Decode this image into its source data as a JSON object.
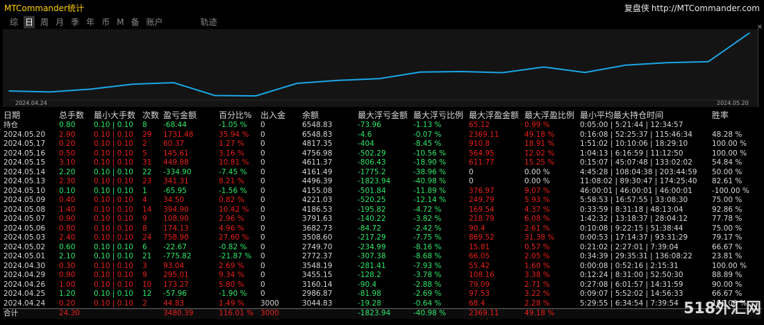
{
  "window": {
    "title": "MTCommander统计",
    "brand_name": "复盘侠",
    "brand_url": "http://MTCommander.com",
    "close": "✕"
  },
  "tabs": [
    "综",
    "日",
    "周",
    "月",
    "季",
    "年",
    "币",
    "M",
    "备",
    "账户",
    "轨迹"
  ],
  "active_tab": "日",
  "chart_data": {
    "type": "line",
    "x": [
      "2024.04.24",
      "2024.04.25",
      "2024.04.26",
      "2024.04.29",
      "2024.04.30",
      "2024.05.01",
      "2024.05.02",
      "2024.05.03",
      "2024.05.06",
      "2024.05.07",
      "2024.05.08",
      "2024.05.09",
      "2024.05.10",
      "2024.05.13",
      "2024.05.14",
      "2024.05.15",
      "2024.05.16",
      "2024.05.17",
      "2024.05.20"
    ],
    "series": [
      {
        "values": [
          3044.83,
          2986.87,
          3160.14,
          3455.15,
          3548.19,
          2772.37,
          2749.7,
          3508.6,
          3682.73,
          3791.63,
          4186.53,
          4221.03,
          4155.08,
          4496.39,
          4161.49,
          4611.37,
          4756.98,
          4817.35,
          6548.83
        ]
      }
    ],
    "xlabel_start": "2024.04.24",
    "xlabel_end": "2024.05.20",
    "ylim": [
      2500,
      6700
    ],
    "grid": false,
    "line_color": "#1aa7e8"
  },
  "table": {
    "headers": [
      "日期",
      "总手数",
      "最小大手数",
      "次数",
      "盈亏金额",
      "百分比%",
      "出入金",
      "余额",
      "最大浮亏金额",
      "最大浮亏比例",
      "最大浮盈金额",
      "最大浮盈比例",
      "最小平均最大持仓时间",
      "胜率"
    ],
    "holding": {
      "label": "持仓",
      "cells": [
        "0.80",
        "0.10 | 0.10",
        "8",
        "-68.44",
        "-1.05 %",
        "0",
        "6548.83",
        "-73.96",
        "-1.13 %",
        "65.12",
        "0.99 %",
        "0:05:00 | 5:21:44 | 12:34:57",
        ""
      ]
    },
    "rows": [
      {
        "date": "2024.05.20",
        "lots": "2.90",
        "minmax": "0.10 | 0.10",
        "count": "29",
        "pl": "1731.48",
        "pct": "35.94 %",
        "flow": "0",
        "balance": "6548.83",
        "mfl": "-4.6",
        "mflp": "-0.07 %",
        "mfp": "2369.11",
        "mfpp": "49.18 %",
        "time": "0:16:08 | 52:25:37 | 115:46:34",
        "win": "48.28 %",
        "sign": "r"
      },
      {
        "date": "2024.05.17",
        "lots": "0.20",
        "minmax": "0.10 | 0.10",
        "count": "2",
        "pl": "60.37",
        "pct": "1.27 %",
        "flow": "0",
        "balance": "4817.35",
        "mfl": "-404",
        "mflp": "-8.45 %",
        "mfp": "910.8",
        "mfpp": "18.91 %",
        "time": "1:51:02 | 10:10:06 | 18:29:10",
        "win": "100.00 %",
        "sign": "r"
      },
      {
        "date": "2024.05.16",
        "lots": "0.50",
        "minmax": "0.10 | 0.10",
        "count": "5",
        "pl": "145.61",
        "pct": "3.16 %",
        "flow": "0",
        "balance": "4756.98",
        "mfl": "-502.29",
        "mflp": "-10.56 %",
        "mfp": "564.95",
        "mfpp": "12.02 %",
        "time": "1:04:13 | 6:16:59 | 11:12:50",
        "win": "100.00 %",
        "sign": "r"
      },
      {
        "date": "2024.05.15",
        "lots": "3.10",
        "minmax": "0.10 | 0.10",
        "count": "31",
        "pl": "449.88",
        "pct": "10.81 %",
        "flow": "0",
        "balance": "4611.37",
        "mfl": "-806.43",
        "mflp": "-18.90 %",
        "mfp": "611.77",
        "mfpp": "15.25 %",
        "time": "0:15:07 | 45:07:48 | 133:02:02",
        "win": "54.84 %",
        "sign": "r"
      },
      {
        "date": "2024.05.14",
        "lots": "2.20",
        "minmax": "0.10 | 0.10",
        "count": "22",
        "pl": "-334.90",
        "pct": "-7.45 %",
        "flow": "0",
        "balance": "4161.49",
        "mfl": "-1775.2",
        "mflp": "-38.96 %",
        "mfp": "0",
        "mfpp": "0.00 %",
        "time": "4:45:28 | 108:04:38 | 203:44:59",
        "win": "50.00 %",
        "sign": "g"
      },
      {
        "date": "2024.05.13",
        "lots": "2.30",
        "minmax": "0.10 | 0.10",
        "count": "23",
        "pl": "341.31",
        "pct": "8.21 %",
        "flow": "0",
        "balance": "4496.39",
        "mfl": "-1823.94",
        "mflp": "-40.98 %",
        "mfp": "0",
        "mfpp": "0.00 %",
        "time": "11:08:02 | 89:30:47 | 174:25:40",
        "win": "82.61 %",
        "sign": "r"
      },
      {
        "date": "2024.05.10",
        "lots": "0.10",
        "minmax": "0.10 | 0.10",
        "count": "1",
        "pl": "-65.95",
        "pct": "-1.56 %",
        "flow": "0",
        "balance": "4155.08",
        "mfl": "-501.84",
        "mflp": "-11.89 %",
        "mfp": "376.97",
        "mfpp": "9.07 %",
        "time": "46:00:01 | 46:00:01 | 46:00:01",
        "win": "-100.00 %",
        "sign": "g"
      },
      {
        "date": "2024.05.09",
        "lots": "0.40",
        "minmax": "0.10 | 0.10",
        "count": "4",
        "pl": "34.50",
        "pct": "0.82 %",
        "flow": "0",
        "balance": "4221.03",
        "mfl": "-520.25",
        "mflp": "-12.14 %",
        "mfp": "249.79",
        "mfpp": "5.93 %",
        "time": "5:58:53 | 16:57:55 | 33:08:30",
        "win": "75.00 %",
        "sign": "r"
      },
      {
        "date": "2024.05.08",
        "lots": "1.40",
        "minmax": "0.10 | 0.10",
        "count": "14",
        "pl": "394.90",
        "pct": "10.42 %",
        "flow": "0",
        "balance": "4186.53",
        "mfl": "-195.82",
        "mflp": "-4.72 %",
        "mfp": "169.54",
        "mfpp": "4.37 %",
        "time": "0:33:59 | 8:31:18 | 48:13:04",
        "win": "92.86 %",
        "sign": "r"
      },
      {
        "date": "2024.05.07",
        "lots": "0.90",
        "minmax": "0.10 | 0.10",
        "count": "9",
        "pl": "108.90",
        "pct": "2.96 %",
        "flow": "0",
        "balance": "3791.63",
        "mfl": "-140.22",
        "mflp": "-3.82 %",
        "mfp": "218.79",
        "mfpp": "6.08 %",
        "time": "1:42:32 | 13:18:37 | 28:04:12",
        "win": "77.78 %",
        "sign": "r"
      },
      {
        "date": "2024.05.06",
        "lots": "0.80",
        "minmax": "0.10 | 0.10",
        "count": "8",
        "pl": "174.13",
        "pct": "4.96 %",
        "flow": "0",
        "balance": "3682.73",
        "mfl": "-84.72",
        "mflp": "-2.42 %",
        "mfp": "90.4",
        "mfpp": "2.61 %",
        "time": "0:10:08 | 9:22:15 | 51:38:44",
        "win": "75.00 %",
        "sign": "r"
      },
      {
        "date": "2024.05.03",
        "lots": "2.40",
        "minmax": "0.10 | 0.10",
        "count": "24",
        "pl": "758.90",
        "pct": "27.60 %",
        "flow": "0",
        "balance": "3508.60",
        "mfl": "-217.29",
        "mflp": "-7.75 %",
        "mfp": "869.52",
        "mfpp": "31.38 %",
        "time": "0:00:53 | 17:14:37 | 93:31:29",
        "win": "79.17 %",
        "sign": "r"
      },
      {
        "date": "2024.05.02",
        "lots": "0.60",
        "minmax": "0.10 | 0.10",
        "count": "6",
        "pl": "-22.67",
        "pct": "-0.82 %",
        "flow": "0",
        "balance": "2749.70",
        "mfl": "-234.99",
        "mflp": "-8.16 %",
        "mfp": "15.81",
        "mfpp": "0.57 %",
        "time": "0:21:02 | 2:27:01 | 7:39:04",
        "win": "66.67 %",
        "sign": "g"
      },
      {
        "date": "2024.05.01",
        "lots": "2.10",
        "minmax": "0.10 | 0.10",
        "count": "21",
        "pl": "-775.82",
        "pct": "-21.87 %",
        "flow": "0",
        "balance": "2772.37",
        "mfl": "-307.38",
        "mflp": "-8.68 %",
        "mfp": "66.05",
        "mfpp": "2.05 %",
        "time": "0:34:39 | 29:35:31 | 136:08:22",
        "win": "23.81 %",
        "sign": "g"
      },
      {
        "date": "2024.04.30",
        "lots": "0.30",
        "minmax": "0.10 | 0.10",
        "count": "3",
        "pl": "93.04",
        "pct": "2.69 %",
        "flow": "0",
        "balance": "3548.19",
        "mfl": "-281.41",
        "mflp": "-7.93 %",
        "mfp": "55.42",
        "mfpp": "1.60 %",
        "time": "0:00:08 | 0:52:16 | 2:15:31",
        "win": "100.00 %",
        "sign": "r"
      },
      {
        "date": "2024.04.29",
        "lots": "0.90",
        "minmax": "0.10 | 0.10",
        "count": "9",
        "pl": "295.01",
        "pct": "9.34 %",
        "flow": "0",
        "balance": "3455.15",
        "mfl": "-128.2",
        "mflp": "-3.78 %",
        "mfp": "108.16",
        "mfpp": "3.38 %",
        "time": "0:12:24 | 8:31:00 | 52:50:30",
        "win": "88.89 %",
        "sign": "r"
      },
      {
        "date": "2024.04.26",
        "lots": "1.00",
        "minmax": "0.10 | 0.10",
        "count": "10",
        "pl": "173.27",
        "pct": "5.80 %",
        "flow": "0",
        "balance": "3160.14",
        "mfl": "-90.4",
        "mflp": "-2.88 %",
        "mfp": "79.09",
        "mfpp": "2.71 %",
        "time": "0:27:08 | 6:01:57 | 14:31:59",
        "win": "90.00 %",
        "sign": "r"
      },
      {
        "date": "2024.04.25",
        "lots": "1.20",
        "minmax": "0.10 | 0.10",
        "count": "12",
        "pl": "-57.96",
        "pct": "-1.90 %",
        "flow": "0",
        "balance": "2986.87",
        "mfl": "-81.98",
        "mflp": "-2.69 %",
        "mfp": "97.53",
        "mfpp": "3.22 %",
        "time": "0:09:07 | 5:52:02 | 14:56:33",
        "win": "66.67 %",
        "sign": "g"
      },
      {
        "date": "2024.04.24",
        "lots": "0.20",
        "minmax": "0.10 | 0.10",
        "count": "2",
        "pl": "44.83",
        "pct": "1.49 %",
        "flow": "3000",
        "balance": "3044.83",
        "mfl": "-19.28",
        "mflp": "-0.64 %",
        "mfp": "68.4",
        "mfpp": "2.28 %",
        "time": "5:29:55 | 6:34:54 | 7:39:54",
        "win": "100.00 %",
        "sign": "r"
      }
    ],
    "total": {
      "label": "合计",
      "lots": "24.30",
      "pl": "3480.39",
      "pct": "116.01 %",
      "flow": "3000",
      "mfl": "-1823.94",
      "mflp": "-40.98 %",
      "mfp": "2369.11",
      "mfpp": "49.18 %"
    }
  },
  "colors": {
    "profit": "#e8201a",
    "loss": "#2ee86a",
    "title": "#ffd200",
    "line": "#1aa7e8"
  },
  "watermark": "518外汇网"
}
